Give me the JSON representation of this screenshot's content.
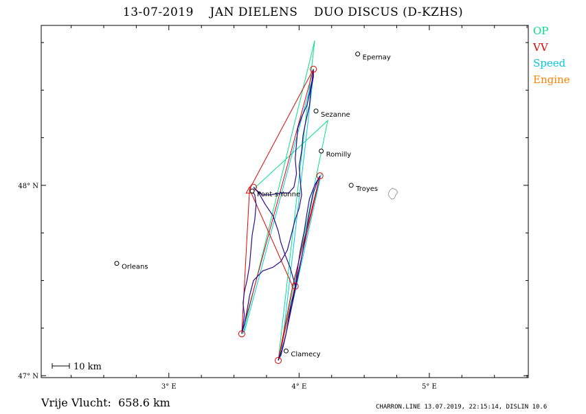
{
  "header": {
    "title": "13-07-2019    JAN DIELENS    DUO DISCUS (D-KZHS)"
  },
  "legend": {
    "items": [
      {
        "label": "OP",
        "color": "#00e08c"
      },
      {
        "label": "VV",
        "color": "#e00000"
      },
      {
        "label": "Speed",
        "color": "#00c8e0"
      },
      {
        "label": "Engine",
        "color": "#ff8000"
      }
    ]
  },
  "axes": {
    "lon_ticks": [
      {
        "lon": 3,
        "label": "3° E"
      },
      {
        "lon": 4,
        "label": "4° E"
      },
      {
        "lon": 5,
        "label": "5° E"
      }
    ],
    "lat_ticks": [
      {
        "lat": 48,
        "label": "48° N"
      },
      {
        "lat": 47,
        "label": "47° N"
      }
    ],
    "lon_range": [
      2.02,
      5.76
    ],
    "lat_range": [
      46.99,
      48.84
    ]
  },
  "cities": [
    {
      "name": "Epernay",
      "lon": 4.45,
      "lat": 48.69
    },
    {
      "name": "Sezanne",
      "lon": 4.13,
      "lat": 48.39
    },
    {
      "name": "Romilly",
      "lon": 4.17,
      "lat": 48.18
    },
    {
      "name": "Troyes",
      "lon": 4.4,
      "lat": 48.0
    },
    {
      "name": "Pont-s-Yonne",
      "lon": 3.64,
      "lat": 47.97
    },
    {
      "name": "Orleans",
      "lon": 2.6,
      "lat": 47.59
    },
    {
      "name": "Clamecy",
      "lon": 3.9,
      "lat": 47.13
    }
  ],
  "turnpoints": [
    {
      "lon": 4.11,
      "lat": 48.61
    },
    {
      "lon": 3.56,
      "lat": 47.22
    },
    {
      "lon": 3.65,
      "lat": 47.99
    },
    {
      "lon": 3.84,
      "lat": 47.08
    },
    {
      "lon": 4.16,
      "lat": 48.05
    },
    {
      "lon": 3.97,
      "lat": 47.47
    }
  ],
  "route_vv": [
    [
      3.62,
      47.98
    ],
    [
      4.11,
      48.61
    ],
    [
      3.56,
      47.22
    ],
    [
      3.62,
      47.98
    ],
    [
      3.95,
      47.47
    ],
    [
      3.84,
      47.08
    ],
    [
      4.16,
      48.05
    ],
    [
      3.95,
      47.47
    ]
  ],
  "route_op": [
    [
      3.57,
      47.22
    ],
    [
      4.12,
      48.76
    ],
    [
      3.84,
      47.08
    ],
    [
      4.22,
      48.34
    ],
    [
      3.65,
      47.98
    ]
  ],
  "route_speed": [
    [
      3.58,
      47.23
    ],
    [
      4.11,
      48.58
    ],
    [
      3.86,
      47.1
    ],
    [
      4.17,
      48.06
    ],
    [
      3.96,
      47.5
    ]
  ],
  "track": [
    [
      3.63,
      47.98
    ],
    [
      3.66,
      47.95
    ],
    [
      3.67,
      47.9
    ],
    [
      3.66,
      47.82
    ],
    [
      3.64,
      47.74
    ],
    [
      3.63,
      47.66
    ],
    [
      3.62,
      47.58
    ],
    [
      3.6,
      47.5
    ],
    [
      3.58,
      47.44
    ],
    [
      3.57,
      47.38
    ],
    [
      3.58,
      47.32
    ],
    [
      3.57,
      47.26
    ],
    [
      3.56,
      47.22
    ],
    [
      3.58,
      47.27
    ],
    [
      3.6,
      47.34
    ],
    [
      3.62,
      47.42
    ],
    [
      3.65,
      47.5
    ],
    [
      3.72,
      47.55
    ],
    [
      3.8,
      47.57
    ],
    [
      3.86,
      47.6
    ],
    [
      3.91,
      47.66
    ],
    [
      3.94,
      47.74
    ],
    [
      3.97,
      47.82
    ],
    [
      4.0,
      47.88
    ],
    [
      4.02,
      47.95
    ],
    [
      4.01,
      48.02
    ],
    [
      4.0,
      48.1
    ],
    [
      4.02,
      48.18
    ],
    [
      4.03,
      48.26
    ],
    [
      4.05,
      48.33
    ],
    [
      4.08,
      48.42
    ],
    [
      4.09,
      48.5
    ],
    [
      4.11,
      48.57
    ],
    [
      4.11,
      48.61
    ],
    [
      4.1,
      48.55
    ],
    [
      4.08,
      48.48
    ],
    [
      4.06,
      48.42
    ],
    [
      4.02,
      48.36
    ],
    [
      3.99,
      48.3
    ],
    [
      3.98,
      48.22
    ],
    [
      3.97,
      48.14
    ],
    [
      3.98,
      48.06
    ],
    [
      3.96,
      47.99
    ],
    [
      3.92,
      47.96
    ],
    [
      3.86,
      47.96
    ],
    [
      3.78,
      47.95
    ],
    [
      3.72,
      47.95
    ],
    [
      3.68,
      47.97
    ],
    [
      3.65,
      47.99
    ],
    [
      3.69,
      47.96
    ],
    [
      3.74,
      47.9
    ],
    [
      3.8,
      47.84
    ],
    [
      3.84,
      47.76
    ],
    [
      3.86,
      47.7
    ],
    [
      3.89,
      47.64
    ],
    [
      3.93,
      47.57
    ],
    [
      3.96,
      47.5
    ],
    [
      3.97,
      47.47
    ],
    [
      3.96,
      47.43
    ],
    [
      3.94,
      47.38
    ],
    [
      3.92,
      47.3
    ],
    [
      3.9,
      47.22
    ],
    [
      3.88,
      47.16
    ],
    [
      3.86,
      47.11
    ],
    [
      3.84,
      47.08
    ],
    [
      3.87,
      47.14
    ],
    [
      3.9,
      47.22
    ],
    [
      3.93,
      47.32
    ],
    [
      3.96,
      47.42
    ],
    [
      3.99,
      47.52
    ],
    [
      4.02,
      47.62
    ],
    [
      4.05,
      47.74
    ],
    [
      4.08,
      47.86
    ],
    [
      4.11,
      47.96
    ],
    [
      4.14,
      48.02
    ],
    [
      4.16,
      48.05
    ],
    [
      4.12,
      48.0
    ],
    [
      4.08,
      47.93
    ],
    [
      4.06,
      47.85
    ],
    [
      4.04,
      47.76
    ],
    [
      4.01,
      47.66
    ],
    [
      3.99,
      47.57
    ],
    [
      3.97,
      47.47
    ]
  ],
  "scale_bar": {
    "label": "10 km"
  },
  "lake_shape": "lake-outline",
  "footer": {
    "distance_label": "Vrije Vlucht:  658.6 km",
    "credits": "CHARRON.LINE 13.07.2019, 22:15:14, DISLIN 10.6"
  },
  "colors": {
    "track": "#2a0a8c",
    "op": "#00e08c",
    "vv": "#e00000",
    "speed": "#00c8e0",
    "city": "#000000",
    "frame": "#000000"
  }
}
